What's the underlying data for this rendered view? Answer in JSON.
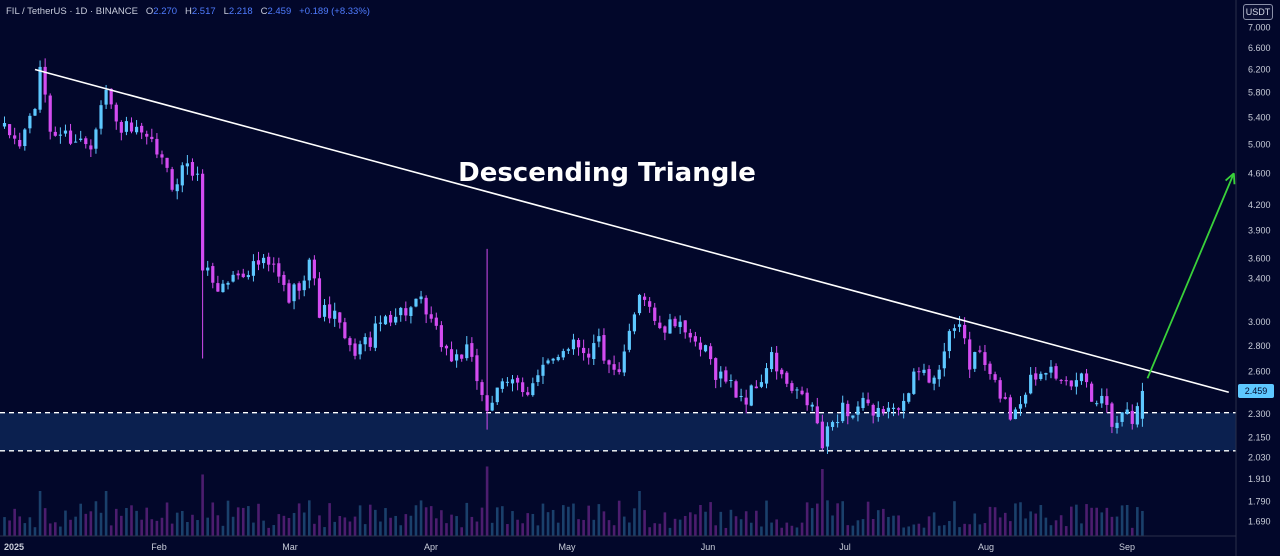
{
  "header": {
    "symbol": "FIL / TetherUS · 1D · BINANCE",
    "o_label": "O",
    "o_value": "2.270",
    "h_label": "H",
    "h_value": "2.517",
    "l_label": "L",
    "l_value": "2.218",
    "c_label": "C",
    "c_value": "2.459",
    "change": "+0.189 (+8.33%)"
  },
  "currency_badge": "USDT",
  "annotation": "Descending Triangle",
  "colors": {
    "background": "#02072a",
    "bull": "#5ec8ff",
    "bear": "#d34cf0",
    "trendline": "#ffffff",
    "support_line": "#ffffff",
    "support_zone": "#0f2a5c",
    "breakout_arrow": "#39d13a",
    "price_badge": "#5ec8ff"
  },
  "chart_data": {
    "type": "candlestick",
    "title": "",
    "y_axis": {
      "scale": "log",
      "ticks": [
        7.0,
        6.6,
        6.2,
        5.8,
        5.4,
        5.0,
        4.6,
        4.2,
        3.9,
        3.6,
        3.4,
        3.0,
        2.8,
        2.6,
        2.3,
        2.15,
        2.03,
        1.91,
        1.79,
        1.69
      ],
      "tick_labels": [
        "7.000",
        "6.600",
        "6.200",
        "5.800",
        "5.400",
        "5.000",
        "4.600",
        "4.200",
        "3.900",
        "3.600",
        "3.400",
        "3.000",
        "2.800",
        "2.600",
        "2.300",
        "2.150",
        "2.030",
        "1.910",
        "1.790",
        "1.690"
      ],
      "ylim": [
        1.62,
        7.4
      ]
    },
    "x_axis": {
      "tick_labels": [
        "2025",
        "Feb",
        "Mar",
        "Apr",
        "May",
        "Jun",
        "Jul",
        "Aug",
        "Sep"
      ]
    },
    "current_price": "2.459",
    "last_candle": {
      "open": 2.27,
      "high": 2.517,
      "low": 2.218,
      "close": 2.459
    },
    "path": [
      [
        0,
        5.2
      ],
      [
        3,
        5.0
      ],
      [
        6,
        5.6
      ],
      [
        7,
        6.1
      ],
      [
        8,
        5.8
      ],
      [
        9,
        5.2
      ],
      [
        13,
        5.1
      ],
      [
        17,
        5.0
      ],
      [
        19,
        5.7
      ],
      [
        20,
        5.85
      ],
      [
        22,
        5.3
      ],
      [
        26,
        5.15
      ],
      [
        30,
        4.9
      ],
      [
        33,
        4.45
      ],
      [
        36,
        4.75
      ],
      [
        38,
        4.5
      ],
      [
        39,
        3.55
      ],
      [
        42,
        3.3
      ],
      [
        46,
        3.45
      ],
      [
        50,
        3.55
      ],
      [
        53,
        3.5
      ],
      [
        56,
        3.2
      ],
      [
        59,
        3.45
      ],
      [
        60,
        3.6
      ],
      [
        62,
        3.1
      ],
      [
        65,
        3.05
      ],
      [
        68,
        2.75
      ],
      [
        72,
        2.85
      ],
      [
        75,
        3.05
      ],
      [
        79,
        3.1
      ],
      [
        82,
        3.15
      ],
      [
        85,
        2.9
      ],
      [
        88,
        2.7
      ],
      [
        91,
        2.75
      ],
      [
        93,
        2.55
      ],
      [
        95,
        2.35
      ],
      [
        98,
        2.48
      ],
      [
        101,
        2.55
      ],
      [
        103,
        2.45
      ],
      [
        106,
        2.6
      ],
      [
        109,
        2.75
      ],
      [
        112,
        2.85
      ],
      [
        115,
        2.75
      ],
      [
        117,
        2.85
      ],
      [
        119,
        2.6
      ],
      [
        121,
        2.55
      ],
      [
        123,
        2.9
      ],
      [
        125,
        3.3
      ],
      [
        127,
        3.15
      ],
      [
        129,
        2.9
      ],
      [
        131,
        2.95
      ],
      [
        133,
        3.05
      ],
      [
        135,
        2.8
      ],
      [
        138,
        2.75
      ],
      [
        140,
        2.6
      ],
      [
        142,
        2.55
      ],
      [
        144,
        2.45
      ],
      [
        146,
        2.4
      ],
      [
        149,
        2.55
      ],
      [
        151,
        2.7
      ],
      [
        153,
        2.55
      ],
      [
        155,
        2.45
      ],
      [
        157,
        2.4
      ],
      [
        159,
        2.35
      ],
      [
        161,
        2.1
      ],
      [
        163,
        2.25
      ],
      [
        165,
        2.35
      ],
      [
        167,
        2.3
      ],
      [
        169,
        2.4
      ],
      [
        171,
        2.25
      ],
      [
        173,
        2.35
      ],
      [
        175,
        2.3
      ],
      [
        177,
        2.45
      ],
      [
        180,
        2.6
      ],
      [
        182,
        2.55
      ],
      [
        184,
        2.65
      ],
      [
        186,
        2.85
      ],
      [
        188,
        3.0
      ],
      [
        189,
        2.85
      ],
      [
        190,
        2.65
      ],
      [
        192,
        2.75
      ],
      [
        194,
        2.55
      ],
      [
        196,
        2.45
      ],
      [
        198,
        2.3
      ],
      [
        200,
        2.4
      ],
      [
        202,
        2.55
      ],
      [
        204,
        2.6
      ],
      [
        206,
        2.7
      ],
      [
        208,
        2.5
      ],
      [
        210,
        2.45
      ],
      [
        212,
        2.6
      ],
      [
        214,
        2.4
      ],
      [
        216,
        2.45
      ],
      [
        218,
        2.25
      ],
      [
        220,
        2.35
      ],
      [
        221,
        2.3
      ],
      [
        222,
        2.25
      ],
      [
        224,
        2.459
      ]
    ],
    "trendline": {
      "start": {
        "day": 6,
        "price": 6.2
      },
      "end": {
        "day": 241,
        "price": 2.45
      }
    },
    "support_zone": {
      "upper": 2.31,
      "lower": 2.07
    },
    "breakout_arrow": {
      "from": {
        "day": 225,
        "price": 2.55
      },
      "to": {
        "day": 242,
        "price": 4.6
      }
    }
  }
}
